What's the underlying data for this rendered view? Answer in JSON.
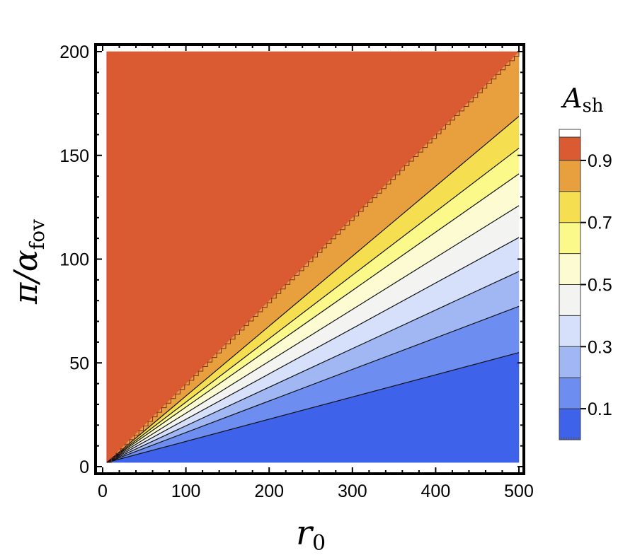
{
  "chart_data": {
    "type": "contour",
    "title": "",
    "xlabel": {
      "main": "r",
      "sub": "0"
    },
    "ylabel": {
      "main": "π/α",
      "sub": "fov"
    },
    "xlim": [
      0,
      500
    ],
    "ylim": [
      0,
      200
    ],
    "x_ticks": [
      0,
      100,
      200,
      300,
      400,
      500
    ],
    "y_ticks": [
      0,
      50,
      100,
      150,
      200
    ],
    "x_tick_labels": [
      "0",
      "100",
      "200",
      "300",
      "400",
      "500"
    ],
    "y_tick_labels": [
      "0",
      "50",
      "100",
      "150",
      "200"
    ],
    "contour_levels": [
      0.1,
      0.2,
      0.3,
      0.4,
      0.5,
      0.6,
      0.7,
      0.8,
      0.9
    ],
    "contour_slopes": [
      0.107,
      0.152,
      0.186,
      0.219,
      0.25,
      0.281,
      0.306,
      0.337,
      0.4
    ],
    "contour_endpoints_at_x500": [
      54,
      76,
      93,
      109,
      125,
      140,
      153,
      168,
      200
    ],
    "band_colors": [
      "#3e62ea",
      "#6d8ef0",
      "#a1b7f4",
      "#d6e0fa",
      "#f3f3f1",
      "#fdfbd2",
      "#fbf98a",
      "#f5de4f",
      "#e7a03d",
      "#da5a31",
      "#cf2d2f"
    ],
    "colorbar": {
      "title": {
        "main": "A",
        "sub": "sh"
      },
      "range": [
        0,
        1
      ],
      "tick_labels": [
        "0.1",
        "0.3",
        "0.5",
        "0.7",
        "0.9"
      ],
      "tick_values": [
        0.1,
        0.3,
        0.5,
        0.7,
        0.9
      ],
      "band_colors": [
        "#3e62ea",
        "#6d8ef0",
        "#a1b7f4",
        "#d6e0fa",
        "#f3f3f1",
        "#fdfbd2",
        "#fbf98a",
        "#f5de4f",
        "#e7a03d",
        "#da5a31",
        "#ffffff"
      ]
    }
  }
}
